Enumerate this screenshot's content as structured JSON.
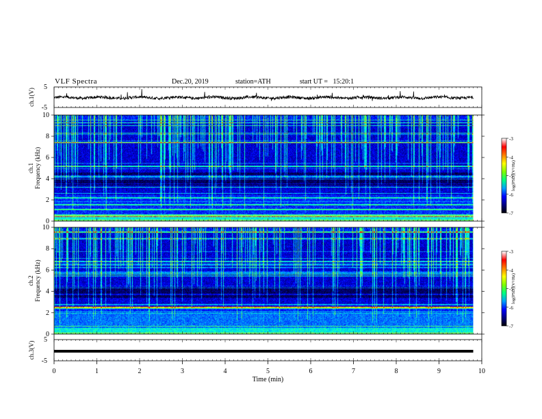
{
  "header": {
    "title": "VLF Spectra",
    "date": "Dec.20, 2019",
    "station": "station=ATH",
    "start_ut": "start UT =   15:20:1"
  },
  "chart_data": [
    {
      "type": "line",
      "panel": "ch1-waveform",
      "ylabel": "ch.1(V)",
      "ylim": [
        -5,
        5
      ],
      "yticks": [
        "5",
        "-5"
      ],
      "description_level": -0.2
    },
    {
      "type": "heatmap",
      "panel": "ch1-spectrogram",
      "ylabel": "Frequency (kHz)",
      "channel_label": "ch.1",
      "ylim": [
        0,
        10
      ],
      "yticks": [
        "0",
        "2",
        "4",
        "6",
        "8",
        "10"
      ],
      "colorbar": {
        "label": "log(PSD)(V²/Hz)",
        "range": [
          -7,
          -3
        ],
        "ticks": [
          "-3",
          "-4",
          "-5",
          "-6",
          "-7"
        ]
      }
    },
    {
      "type": "heatmap",
      "panel": "ch2-spectrogram",
      "ylabel": "Frequency (kHz)",
      "channel_label": "ch.2",
      "ylim": [
        0,
        10
      ],
      "yticks": [
        "0",
        "2",
        "4",
        "6",
        "8",
        "10"
      ],
      "colorbar": {
        "label": "log(PSD)(V²/Hz)",
        "range": [
          -7,
          -3
        ],
        "ticks": [
          "-3",
          "-4",
          "-5",
          "-6",
          "-7"
        ]
      }
    },
    {
      "type": "line",
      "panel": "ch3-waveform",
      "ylabel": "ch.3(V)",
      "ylim": [
        -5,
        5
      ],
      "yticks": [
        "5",
        "-5"
      ],
      "level": -0.5
    }
  ],
  "xaxis": {
    "label": "Time (min)",
    "range": [
      0,
      10
    ],
    "ticks": [
      "0",
      "1",
      "2",
      "3",
      "4",
      "5",
      "6",
      "7",
      "8",
      "9",
      "10"
    ],
    "data_end": 9.8
  },
  "colors": {
    "colormap": [
      "#000000",
      "#000080",
      "#0000ff",
      "#00a0ff",
      "#00ff80",
      "#80ff00",
      "#ffff00",
      "#ff8000",
      "#ff0000",
      "#ffffff"
    ]
  }
}
